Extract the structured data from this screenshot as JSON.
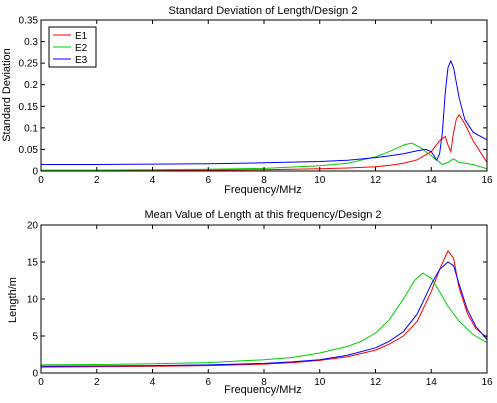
{
  "chart_data": [
    {
      "type": "line",
      "title": "Standard Deviation of Length/Design 2",
      "xlabel": "Frequency/MHz",
      "ylabel": "Standard Deviation",
      "xlim": [
        0,
        16
      ],
      "ylim": [
        0,
        0.35
      ],
      "xticks": [
        0,
        2,
        4,
        6,
        8,
        10,
        12,
        14,
        16
      ],
      "xtick_labels": [
        "0",
        "2",
        "4",
        "6",
        "8",
        "10",
        "12",
        "14",
        "16"
      ],
      "yticks": [
        0,
        0.05,
        0.1,
        0.15,
        0.2,
        0.25,
        0.3,
        0.35
      ],
      "ytick_labels": [
        "0",
        "0.05",
        "0.1",
        "0.15",
        "0.2",
        "0.25",
        "0.3",
        "0.35"
      ],
      "grid": false,
      "legend": "top-left",
      "series": [
        {
          "name": "E1",
          "color": "#ff0000",
          "x": [
            0,
            2,
            4,
            6,
            8,
            10,
            11,
            12,
            12.5,
            13,
            13.5,
            14,
            14.3,
            14.5,
            14.6,
            14.7,
            14.8,
            14.9,
            15.0,
            15.2,
            15.5,
            15.8,
            16
          ],
          "y": [
            0.001,
            0.001,
            0.002,
            0.002,
            0.003,
            0.005,
            0.007,
            0.01,
            0.013,
            0.018,
            0.026,
            0.045,
            0.07,
            0.08,
            0.06,
            0.045,
            0.09,
            0.12,
            0.13,
            0.11,
            0.07,
            0.04,
            0.02
          ]
        },
        {
          "name": "E2",
          "color": "#00cc00",
          "x": [
            0,
            2,
            4,
            6,
            8,
            10,
            11,
            12,
            12.5,
            13,
            13.3,
            13.6,
            14,
            14.2,
            14.4,
            14.6,
            14.8,
            15.0,
            15.5,
            16
          ],
          "y": [
            0.002,
            0.002,
            0.003,
            0.004,
            0.006,
            0.012,
            0.018,
            0.033,
            0.045,
            0.06,
            0.065,
            0.055,
            0.035,
            0.025,
            0.015,
            0.02,
            0.028,
            0.02,
            0.015,
            0.005
          ]
        },
        {
          "name": "E3",
          "color": "#0000ff",
          "x": [
            0,
            2,
            4,
            6,
            8,
            10,
            11,
            12,
            12.5,
            13,
            13.5,
            13.8,
            14.0,
            14.2,
            14.3,
            14.4,
            14.5,
            14.6,
            14.7,
            14.8,
            15.0,
            15.2,
            15.5,
            16
          ],
          "y": [
            0.015,
            0.015,
            0.016,
            0.017,
            0.019,
            0.022,
            0.025,
            0.031,
            0.035,
            0.04,
            0.047,
            0.05,
            0.045,
            0.025,
            0.04,
            0.09,
            0.18,
            0.24,
            0.255,
            0.24,
            0.17,
            0.12,
            0.09,
            0.072
          ]
        }
      ]
    },
    {
      "type": "line",
      "title": "Mean Value of Length at this frequency/Design 2",
      "xlabel": "Frequency/MHz",
      "ylabel": "Length/m",
      "xlim": [
        0,
        16
      ],
      "ylim": [
        0,
        20
      ],
      "xticks": [
        0,
        2,
        4,
        6,
        8,
        10,
        12,
        14,
        16
      ],
      "xtick_labels": [
        "0",
        "2",
        "4",
        "6",
        "8",
        "10",
        "12",
        "14",
        "16"
      ],
      "yticks": [
        0,
        5,
        10,
        15,
        20
      ],
      "ytick_labels": [
        "0",
        "5",
        "10",
        "15",
        "20"
      ],
      "grid": false,
      "legend": "none",
      "series": [
        {
          "name": "E1",
          "color": "#ff0000",
          "x": [
            0,
            2,
            4,
            6,
            8,
            9,
            10,
            11,
            12,
            12.5,
            13,
            13.5,
            14,
            14.3,
            14.6,
            14.8,
            15,
            15.3,
            15.6,
            16
          ],
          "y": [
            0.8,
            0.85,
            0.9,
            1.0,
            1.2,
            1.4,
            1.7,
            2.2,
            3.1,
            3.9,
            5.0,
            7.0,
            11.0,
            14.0,
            16.5,
            15.5,
            11.5,
            8.0,
            6.0,
            4.8
          ]
        },
        {
          "name": "E2",
          "color": "#00cc00",
          "x": [
            0,
            2,
            4,
            6,
            8,
            9,
            10,
            11,
            11.5,
            12,
            12.5,
            13,
            13.4,
            13.7,
            14,
            14.3,
            14.6,
            15,
            15.5,
            16
          ],
          "y": [
            1.1,
            1.15,
            1.25,
            1.4,
            1.8,
            2.1,
            2.7,
            3.6,
            4.3,
            5.4,
            7.2,
            10.0,
            12.5,
            13.5,
            12.8,
            11.0,
            9.0,
            7.0,
            5.2,
            4.1
          ]
        },
        {
          "name": "E3",
          "color": "#0000ff",
          "x": [
            0,
            2,
            4,
            6,
            8,
            9,
            10,
            11,
            12,
            12.5,
            13,
            13.5,
            14,
            14.3,
            14.6,
            14.8,
            15,
            15.3,
            15.6,
            16
          ],
          "y": [
            0.9,
            0.95,
            1.0,
            1.1,
            1.3,
            1.5,
            1.8,
            2.4,
            3.4,
            4.3,
            5.6,
            8.0,
            12.0,
            14.0,
            15.0,
            14.5,
            12.0,
            8.5,
            6.3,
            4.5
          ]
        }
      ]
    }
  ]
}
